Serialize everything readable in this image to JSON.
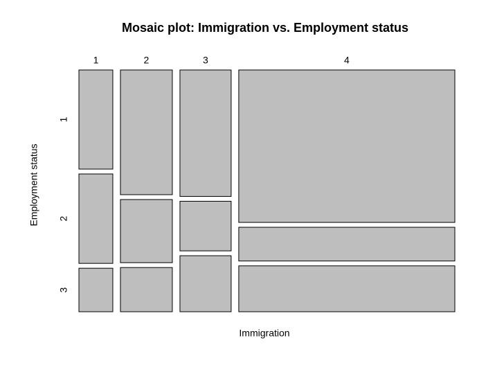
{
  "chart_data": {
    "type": "mosaic",
    "title": "Mosaic plot: Immigration vs. Employment status",
    "x_label": "Immigration",
    "y_label": "Employment status",
    "x_categories": [
      "1",
      "2",
      "3",
      "4"
    ],
    "y_categories": [
      "1",
      "2",
      "3"
    ],
    "values": [
      [
        4.1,
        3.7,
        1.8
      ],
      [
        7.9,
        4.0,
        2.8
      ],
      [
        7.9,
        3.1,
        3.5
      ],
      [
        40.2,
        8.9,
        12.1
      ]
    ],
    "color": "#bebebe"
  }
}
